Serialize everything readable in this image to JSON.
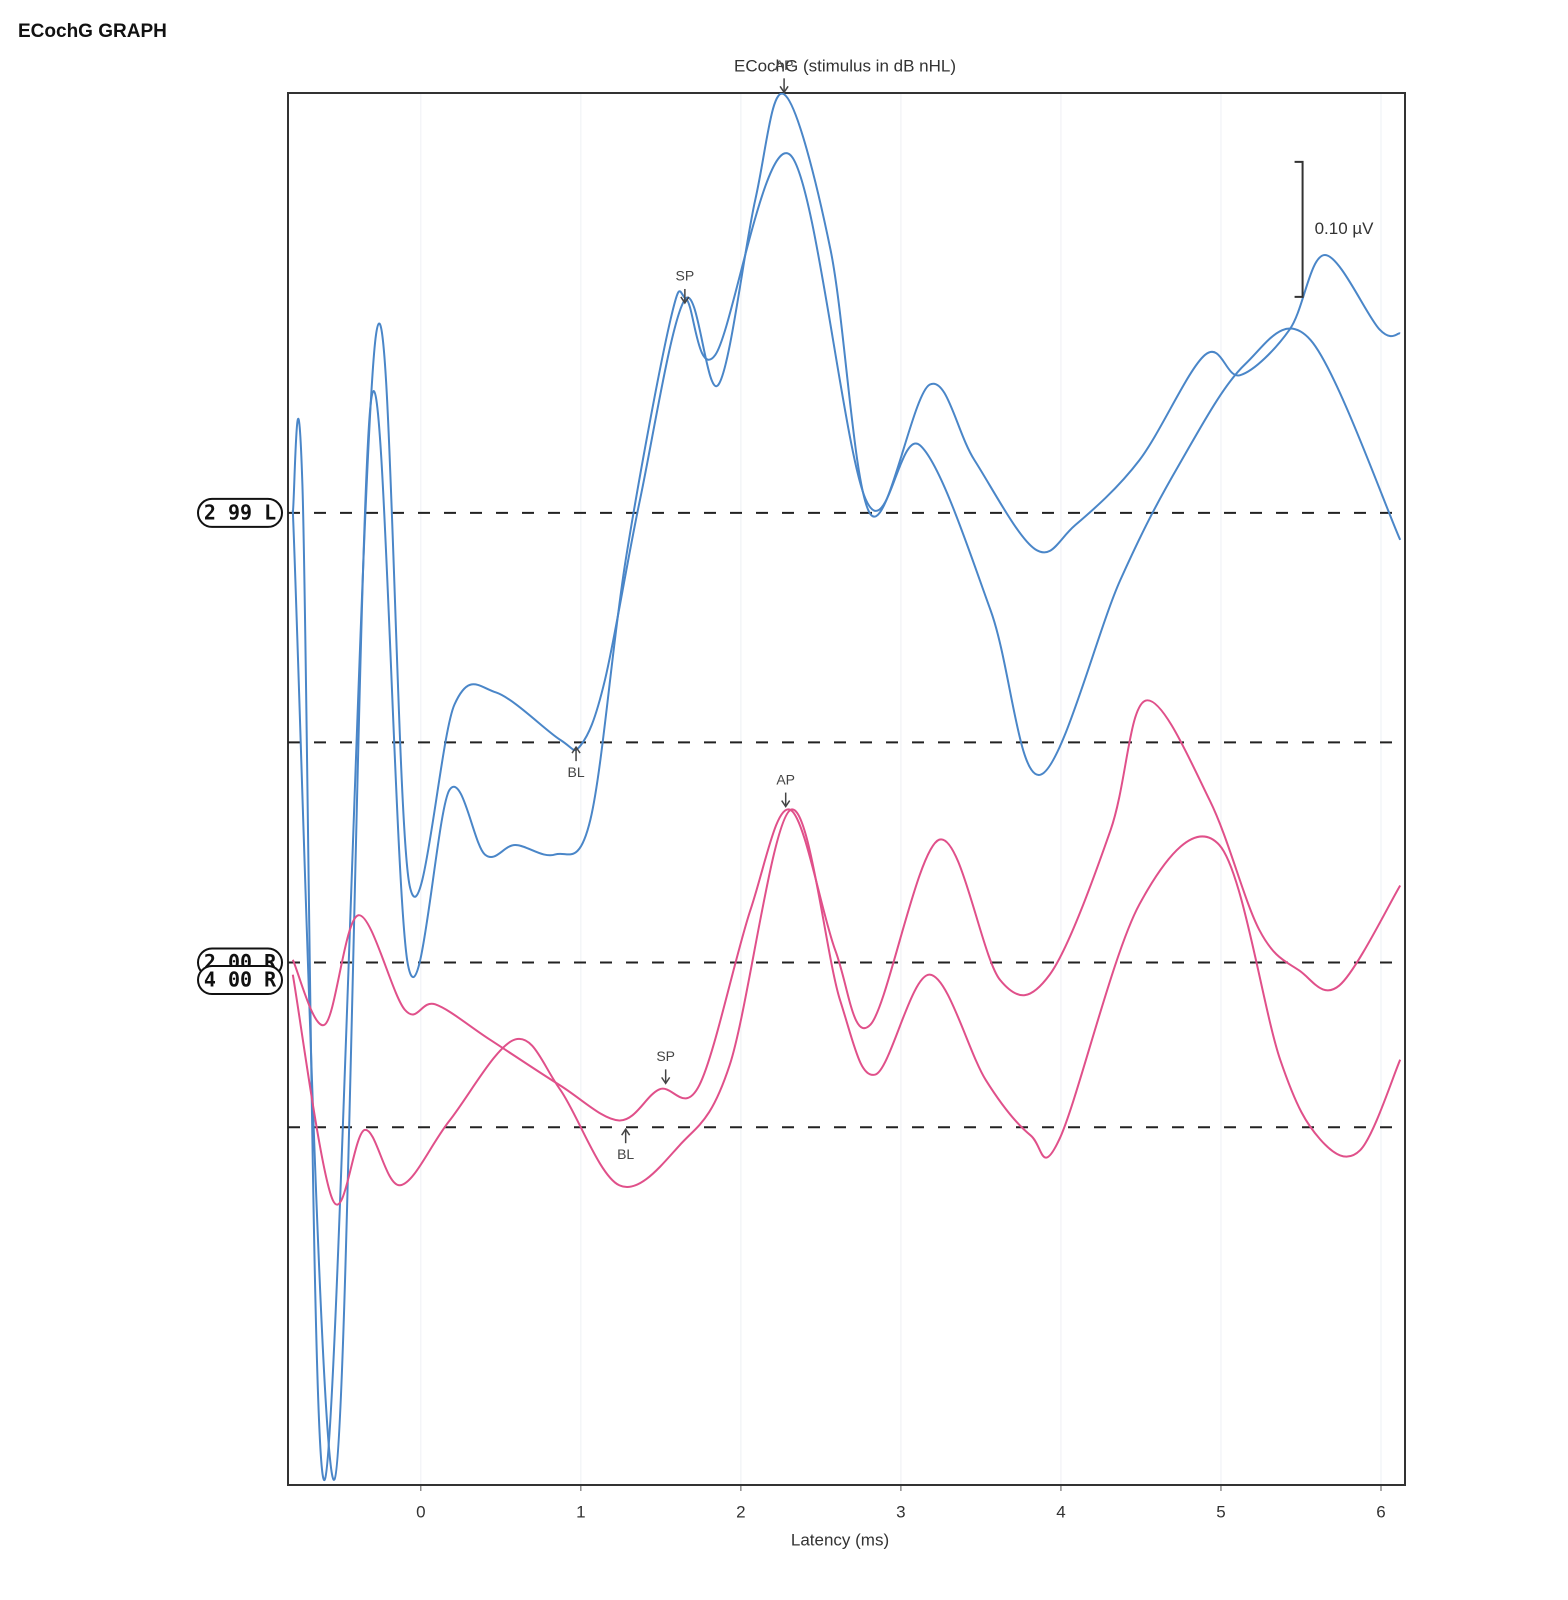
{
  "page_title": "ECochG GRAPH",
  "chart_data": {
    "type": "line",
    "title": "ECochG (stimulus in dB nHL)",
    "x_label": "Latency (ms)",
    "xlim": [
      -0.83,
      6.15
    ],
    "xticks": [
      0,
      1,
      2,
      3,
      4,
      5,
      6
    ],
    "ylim": [
      0,
      1.031
    ],
    "grid": true,
    "series": [
      {
        "color": "#4a86c8",
        "x": [
          -0.8,
          -0.74,
          -0.6,
          -0.28,
          -0.07,
          0.21,
          0.47,
          0.87,
          1.0,
          1.15,
          1.37,
          1.65,
          1.86,
          2.09,
          2.27,
          2.56,
          2.81,
          3.18,
          3.46,
          3.84,
          4.09,
          4.49,
          4.9,
          5.12,
          5.43,
          5.65,
          5.99,
          6.12
        ],
        "values": [
          0.72,
          0.741,
          0.004,
          0.852,
          0.444,
          0.578,
          0.587,
          0.552,
          0.548,
          0.596,
          0.73,
          0.878,
          0.815,
          0.952,
          1.03,
          0.915,
          0.719,
          0.815,
          0.759,
          0.693,
          0.711,
          0.759,
          0.837,
          0.822,
          0.856,
          0.911,
          0.856,
          0.853
        ]
      },
      {
        "color": "#4a86c8",
        "x": [
          -0.8,
          -0.54,
          -0.31,
          -0.08,
          0.18,
          0.4,
          0.59,
          0.84,
          1.06,
          1.28,
          1.56,
          1.66,
          1.84,
          2.31,
          2.78,
          3.12,
          3.56,
          3.87,
          4.37,
          4.74,
          5.15,
          5.56,
          6.12
        ],
        "values": [
          0.722,
          0.004,
          0.804,
          0.385,
          0.515,
          0.467,
          0.474,
          0.467,
          0.493,
          0.685,
          0.863,
          0.878,
          0.837,
          0.985,
          0.73,
          0.77,
          0.648,
          0.526,
          0.67,
          0.756,
          0.83,
          0.848,
          0.7
        ]
      },
      {
        "color": "#e0508a",
        "x": [
          -0.8,
          -0.6,
          -0.39,
          -0.1,
          0.09,
          0.43,
          0.87,
          1.24,
          1.49,
          1.74,
          2.06,
          2.31,
          2.59,
          2.81,
          3.24,
          3.62,
          3.93,
          4.31,
          4.53,
          4.93,
          5.24,
          5.49,
          5.74,
          6.12
        ],
        "values": [
          0.389,
          0.341,
          0.422,
          0.352,
          0.356,
          0.33,
          0.296,
          0.27,
          0.293,
          0.296,
          0.426,
          0.5,
          0.396,
          0.341,
          0.478,
          0.374,
          0.378,
          0.485,
          0.581,
          0.507,
          0.411,
          0.381,
          0.37,
          0.444
        ]
      },
      {
        "color": "#e0508a",
        "x": [
          -0.8,
          -0.55,
          -0.35,
          -0.13,
          0.18,
          0.59,
          0.87,
          1.24,
          1.62,
          1.93,
          2.31,
          2.62,
          2.84,
          3.18,
          3.53,
          3.81,
          3.99,
          4.49,
          4.99,
          5.37,
          5.62,
          5.87,
          6.12
        ],
        "values": [
          0.378,
          0.211,
          0.263,
          0.222,
          0.27,
          0.33,
          0.293,
          0.222,
          0.252,
          0.311,
          0.5,
          0.359,
          0.304,
          0.378,
          0.3,
          0.259,
          0.256,
          0.43,
          0.474,
          0.315,
          0.256,
          0.248,
          0.315
        ]
      }
    ],
    "reference_lines": [
      0.72,
      0.55,
      0.387,
      0.265
    ],
    "trace_labels": [
      {
        "text": "2 99 L",
        "y": 0.72
      },
      {
        "text": "2 00 R",
        "y": 0.387
      },
      {
        "text": "4 00 R",
        "y": 0.374
      }
    ],
    "annotations": [
      {
        "text": "SP",
        "x": 1.65,
        "y": 0.874,
        "position": "above"
      },
      {
        "text": "AP",
        "x": 2.27,
        "y": 1.03,
        "position": "above"
      },
      {
        "text": "BL",
        "x": 0.97,
        "y": 0.548,
        "position": "below"
      },
      {
        "text": "AP",
        "x": 2.28,
        "y": 0.501,
        "position": "above"
      },
      {
        "text": "SP",
        "x": 1.53,
        "y": 0.296,
        "position": "above"
      },
      {
        "text": "BL",
        "x": 1.28,
        "y": 0.265,
        "position": "below"
      }
    ],
    "scale_bar": {
      "x": 5.51,
      "y": 0.98,
      "value": 0.1,
      "label": "0.10 µV"
    }
  }
}
